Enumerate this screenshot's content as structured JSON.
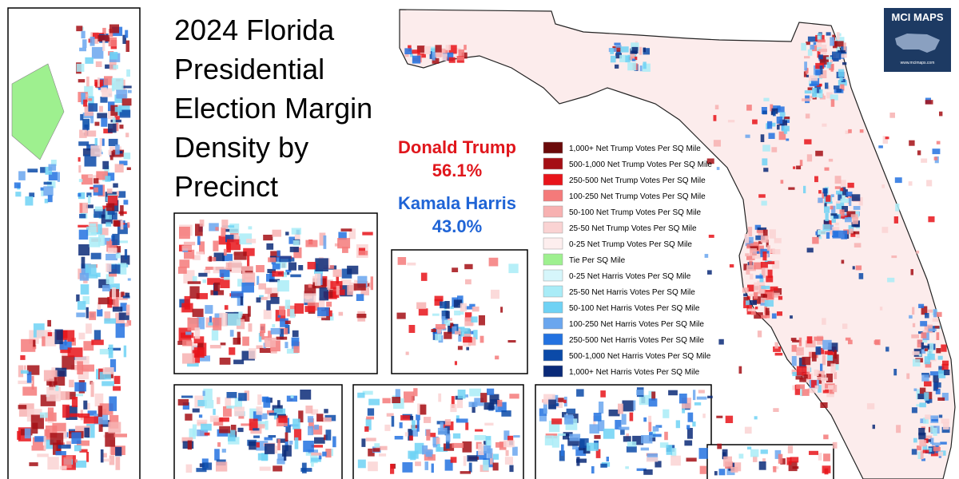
{
  "title_lines": [
    "2024 Florida",
    "Presidential",
    "Election Margin",
    "Density by",
    "Precinct"
  ],
  "results": [
    {
      "name": "Donald Trump",
      "share": "56.1%",
      "color": "#e0161c"
    },
    {
      "name": "Kamala Harris",
      "share": "43.0%",
      "color": "#1f64d6"
    }
  ],
  "legend": [
    {
      "label": "1,000+ Net Trump Votes Per SQ Mile",
      "color": "#6b0a0a"
    },
    {
      "label": "500-1,000 Net Trump Votes Per SQ Mile",
      "color": "#a50f15"
    },
    {
      "label": "250-500 Net Trump Votes Per SQ Mile",
      "color": "#e8141a"
    },
    {
      "label": "100-250 Net Trump Votes Per SQ Mile",
      "color": "#f47a7a"
    },
    {
      "label": "50-100 Net Trump Votes Per SQ Mile",
      "color": "#f7b1b1"
    },
    {
      "label": "25-50 Net Trump Votes Per SQ Mile",
      "color": "#fad3d3"
    },
    {
      "label": "0-25 Net Trump Votes Per SQ Mile",
      "color": "#fdeeee"
    },
    {
      "label": "Tie Per SQ Mile",
      "color": "#9ef08f"
    },
    {
      "label": "0-25 Net Harris Votes Per SQ Mile",
      "color": "#d6f6fb"
    },
    {
      "label": "25-50 Net Harris Votes Per SQ Mile",
      "color": "#a9ecf7"
    },
    {
      "label": "50-100 Net Harris Votes Per SQ Mile",
      "color": "#6fd2f4"
    },
    {
      "label": "100-250 Net Harris Votes Per SQ Mile",
      "color": "#6aa6ee"
    },
    {
      "label": "250-500 Net Harris Votes Per SQ Mile",
      "color": "#2372e0"
    },
    {
      "label": "500-1,000 Net Harris Votes Per SQ Mile",
      "color": "#0b4aa8"
    },
    {
      "label": "1,000+ Net Harris Votes Per SQ Mile",
      "color": "#0a2a78"
    }
  ],
  "logo": {
    "name": "MCI MAPS",
    "url": "www.mcimaps.com"
  }
}
